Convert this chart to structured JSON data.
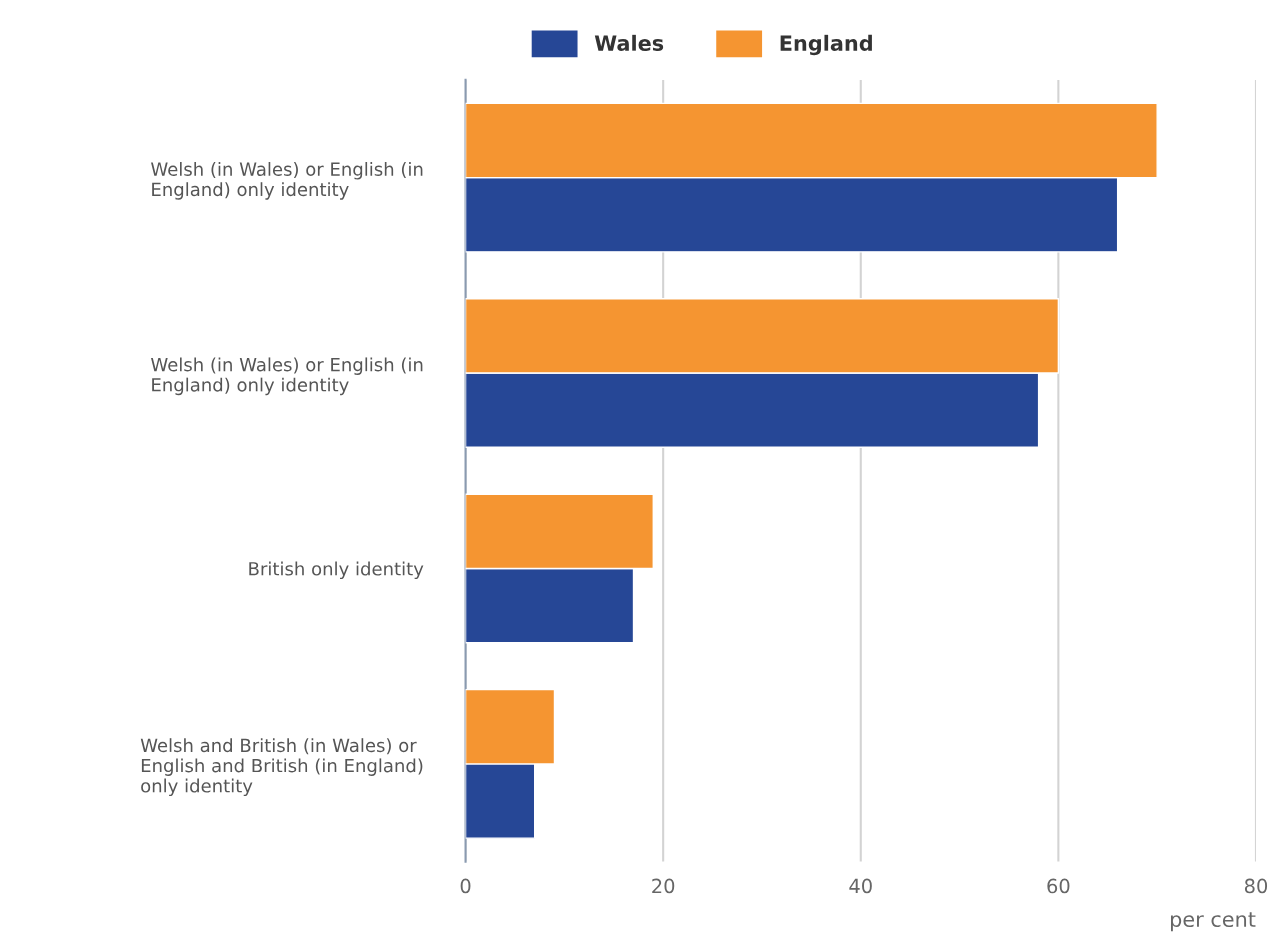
{
  "chart_data": {
    "type": "bar",
    "orientation": "horizontal",
    "categories": [
      "Welsh (in Wales) or English (in England) only identity",
      "Welsh (in Wales) or English (in England) only identity",
      "British only identity",
      "Welsh and British (in Wales) or English and British (in England) only identity"
    ],
    "series": [
      {
        "name": "Wales",
        "color": "#264796",
        "values": [
          66,
          58,
          17,
          7
        ]
      },
      {
        "name": "England",
        "color": "#f59531",
        "values": [
          70,
          60,
          19,
          9
        ]
      }
    ],
    "xlabel": "per cent",
    "xlim": [
      0,
      80
    ],
    "xticks": [
      0,
      20,
      40,
      60,
      80
    ],
    "grid": "x",
    "legend": "top"
  }
}
